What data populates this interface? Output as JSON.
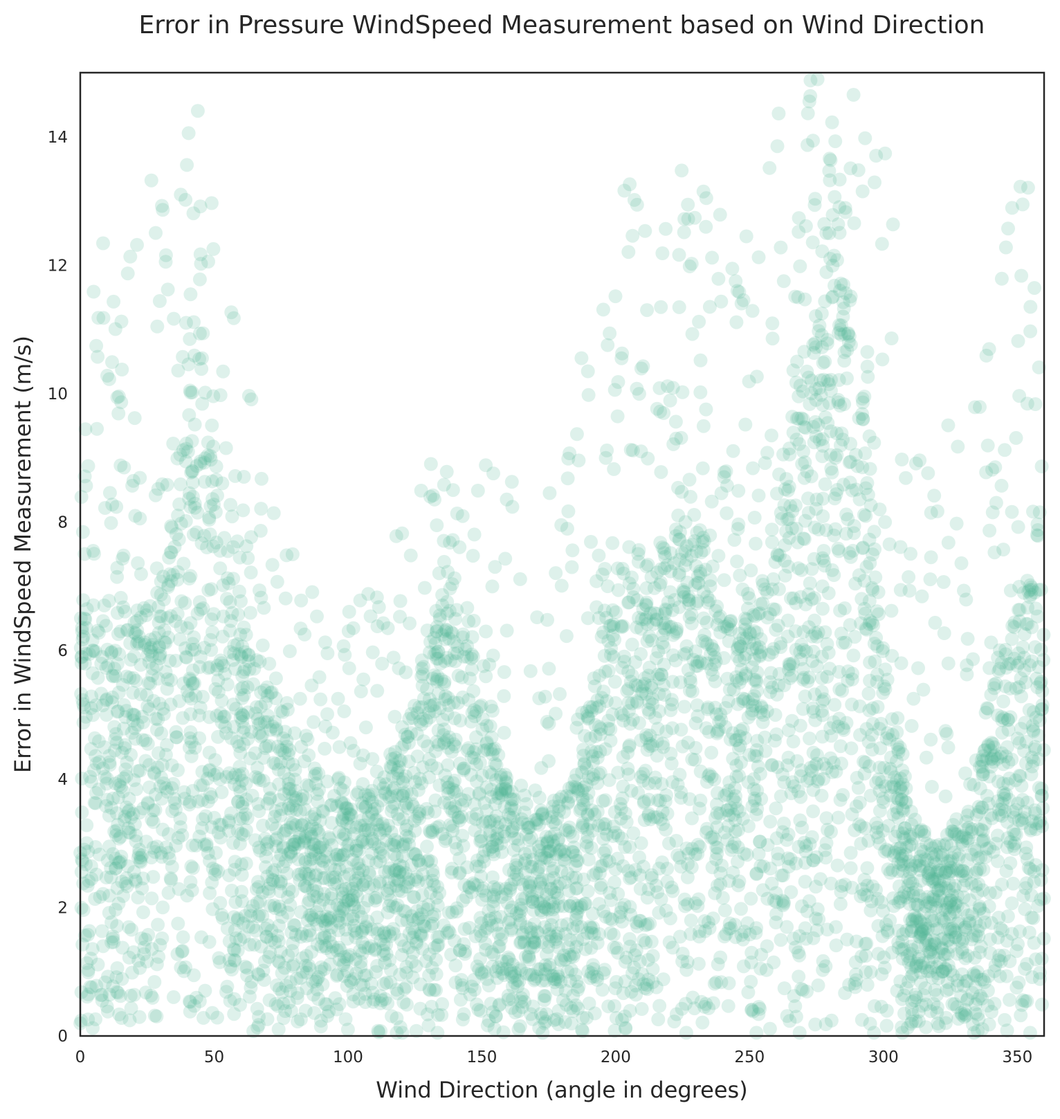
{
  "chart_data": {
    "type": "scatter",
    "title": "Error in Pressure WindSpeed Measurement based on Wind Direction",
    "xlabel": "Wind Direction (angle in degrees)",
    "ylabel": "Error in WindSpeed Measurement (m/s)",
    "xlim": [
      0,
      360
    ],
    "ylim": [
      0,
      15
    ],
    "xticks": [
      0,
      50,
      100,
      150,
      200,
      250,
      300,
      350
    ],
    "yticks": [
      0,
      2,
      4,
      6,
      8,
      10,
      12,
      14
    ],
    "grid": false,
    "legend": "none",
    "marker_color": "#4fb595",
    "marker_alpha": 0.1,
    "density_profile": {
      "description_of_series": "dense point cloud; upper envelope of point density by wind direction",
      "direction": [
        0,
        10,
        20,
        30,
        40,
        45,
        50,
        60,
        70,
        80,
        90,
        100,
        110,
        120,
        130,
        137,
        145,
        155,
        165,
        175,
        185,
        195,
        205,
        215,
        225,
        235,
        245,
        255,
        265,
        275,
        285,
        290,
        300,
        310,
        320,
        330,
        340,
        350,
        360
      ],
      "dense_upper_error": [
        7.0,
        6.8,
        6.5,
        7.0,
        9.5,
        10.5,
        9.0,
        6.5,
        5.2,
        4.5,
        4.0,
        3.6,
        3.8,
        4.5,
        6.0,
        7.2,
        6.0,
        4.5,
        3.5,
        3.5,
        4.0,
        6.5,
        7.5,
        7.5,
        8.5,
        7.5,
        6.5,
        7.0,
        9.5,
        11.0,
        12.5,
        11.0,
        6.0,
        3.5,
        3.0,
        3.5,
        5.5,
        7.0,
        7.0
      ],
      "max_error": [
        12.0,
        12.5,
        13.0,
        13.5,
        14.8,
        15.0,
        13.5,
        11.0,
        8.5,
        7.5,
        7.0,
        7.0,
        7.0,
        8.0,
        9.0,
        9.0,
        8.5,
        9.5,
        9.0,
        9.5,
        10.5,
        12.0,
        13.5,
        13.0,
        14.0,
        14.5,
        12.0,
        13.5,
        15.0,
        15.0,
        15.0,
        15.0,
        14.0,
        11.0,
        9.5,
        10.0,
        12.0,
        14.0,
        12.5
      ]
    }
  }
}
